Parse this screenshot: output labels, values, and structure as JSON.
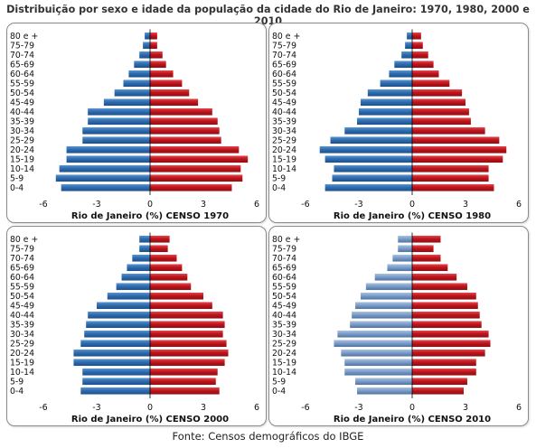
{
  "title": "Distribuição por sexo e idade da população  da cidade do Rio de Janeiro: 1970, 1980, 2000 e 2010",
  "source": "Fonte: Censos demográficos do IBGE",
  "colors": {
    "male": "#2e6db0",
    "male_light": "#7d9ec9",
    "female": "#c0141c",
    "panel_border": "#8a8a8a",
    "axis": "#000000"
  },
  "chart_data": [
    {
      "type": "bar",
      "xlabel": "Rio de Janeiro (%) CENSO 1970",
      "xlim": [
        -6,
        6
      ],
      "xticks": [
        "-6",
        "-3",
        "0",
        "3",
        "6"
      ],
      "categories": [
        "0-4",
        "5-9",
        "10-14",
        "15-19",
        "20-24",
        "25-29",
        "30-34",
        "35-39",
        "40-44",
        "45-49",
        "50-54",
        "55-59",
        "60-64",
        "65-69",
        "70-74",
        "75-79",
        "80 e +"
      ],
      "series": [
        {
          "values": [
            -5.0,
            -5.3,
            -5.1,
            -4.7,
            -4.7,
            -3.8,
            -3.8,
            -3.5,
            -3.5,
            -2.6,
            -2.0,
            -1.5,
            -1.2,
            -0.9,
            -0.6,
            -0.4,
            -0.3
          ]
        },
        {
          "values": [
            4.6,
            5.2,
            5.1,
            5.5,
            5.0,
            4.0,
            3.9,
            3.8,
            3.5,
            2.7,
            2.2,
            1.8,
            1.3,
            0.9,
            0.7,
            0.4,
            0.4
          ]
        }
      ]
    },
    {
      "type": "bar",
      "xlabel": "Rio de Janeiro (%) CENSO 1980",
      "xlim": [
        -6,
        6
      ],
      "xticks": [
        "-6",
        "-3",
        "0",
        "3",
        "6"
      ],
      "categories": [
        "0-4",
        "5-9",
        "10-14",
        "15-19",
        "20-24",
        "25-29",
        "30-34",
        "35-39",
        "40-44",
        "45-49",
        "50-54",
        "55-59",
        "60-64",
        "65-69",
        "70-74",
        "75-79",
        "80 e +"
      ],
      "series": [
        {
          "values": [
            -4.9,
            -4.5,
            -4.4,
            -4.9,
            -5.2,
            -4.6,
            -3.8,
            -3.1,
            -3.0,
            -2.9,
            -2.5,
            -1.8,
            -1.3,
            -1.0,
            -0.6,
            -0.4,
            -0.3
          ]
        },
        {
          "values": [
            4.6,
            4.3,
            4.3,
            5.1,
            5.3,
            4.9,
            4.1,
            3.3,
            3.2,
            3.0,
            2.8,
            2.1,
            1.5,
            1.2,
            0.9,
            0.6,
            0.5
          ]
        }
      ]
    },
    {
      "type": "bar",
      "xlabel": "Rio de Janeiro (%) CENSO 2000",
      "xlim": [
        -6,
        6
      ],
      "xticks": [
        "-6",
        "-3",
        "0",
        "3",
        "6"
      ],
      "categories": [
        "0-4",
        "5-9",
        "10-14",
        "15-19",
        "20-24",
        "25-29",
        "30-34",
        "35-39",
        "40-44",
        "45-49",
        "50-54",
        "55-59",
        "60-64",
        "65-69",
        "70-74",
        "75-79",
        "80 e +"
      ],
      "series": [
        {
          "values": [
            -3.9,
            -3.8,
            -3.8,
            -4.3,
            -4.3,
            -3.9,
            -3.7,
            -3.6,
            -3.5,
            -3.0,
            -2.4,
            -1.9,
            -1.6,
            -1.3,
            -1.0,
            -0.6,
            -0.6
          ]
        },
        {
          "values": [
            3.9,
            3.7,
            3.8,
            4.2,
            4.4,
            4.3,
            4.1,
            4.2,
            4.1,
            3.5,
            3.0,
            2.3,
            2.1,
            1.8,
            1.5,
            1.0,
            1.1
          ]
        }
      ]
    },
    {
      "type": "bar",
      "xlabel": "Rio de Janeiro (%)  CENSO 2010",
      "xlim": [
        -6,
        6
      ],
      "xticks": [
        "-6",
        "-3",
        "0",
        "3",
        "6"
      ],
      "categories": [
        "0-4",
        "5-9",
        "10-14",
        "15-19",
        "20-24",
        "25-29",
        "30-34",
        "35-39",
        "40-44",
        "45-49",
        "50-54",
        "55-59",
        "60-64",
        "65-69",
        "70-74",
        "75-79",
        "80 e +"
      ],
      "series": [
        {
          "values": [
            -3.1,
            -3.2,
            -3.8,
            -3.8,
            -4.0,
            -4.4,
            -4.2,
            -3.5,
            -3.4,
            -3.2,
            -2.9,
            -2.6,
            -2.1,
            -1.4,
            -1.1,
            -0.8,
            -0.8
          ]
        },
        {
          "values": [
            2.9,
            3.1,
            3.6,
            3.6,
            4.1,
            4.4,
            4.3,
            3.9,
            3.8,
            3.7,
            3.6,
            3.1,
            2.5,
            2.0,
            1.6,
            1.2,
            1.6
          ]
        }
      ]
    }
  ]
}
